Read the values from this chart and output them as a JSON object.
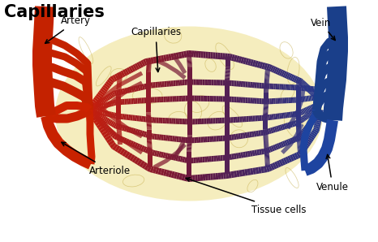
{
  "title": "Capillaries",
  "bg_color": "#ffffff",
  "tissue_color": "#f5edbe",
  "artery_color": "#c82000",
  "vein_color": "#1a3f8a",
  "labels": {
    "title": "Capillaries",
    "arteriole": "Arteriole",
    "artery": "Artery",
    "tissue": "Tissue cells",
    "venule": "Venule",
    "vein": "Vein",
    "capillaries": "Capillaries"
  },
  "figsize": [
    4.66,
    2.98
  ],
  "dpi": 100
}
